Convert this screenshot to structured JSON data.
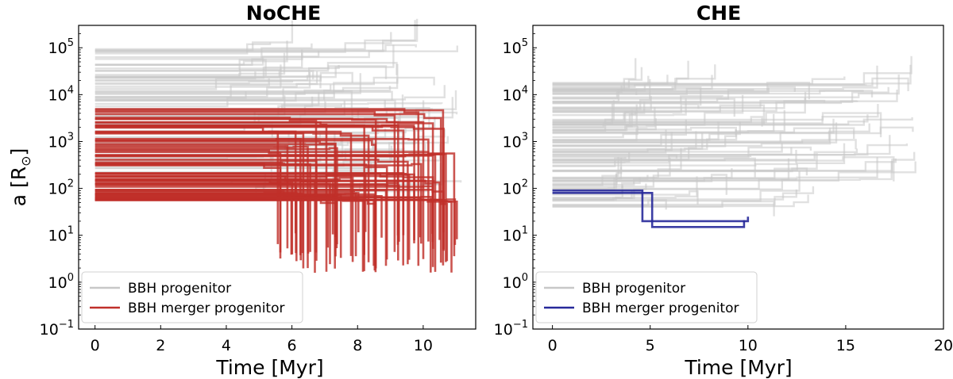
{
  "chart_data": [
    {
      "type": "line",
      "title": "NoCHE",
      "xlabel": "Time [Myr]",
      "ylabel": "a [R",
      "ylabel_symbol": "⊙",
      "x_ticks": [
        "0",
        "2",
        "4",
        "6",
        "8",
        "10"
      ],
      "y_ticks": [
        {
          "base": "10",
          "exp": "−1"
        },
        {
          "base": "10",
          "exp": "0"
        },
        {
          "base": "10",
          "exp": "1"
        },
        {
          "base": "10",
          "exp": "2"
        },
        {
          "base": "10",
          "exp": "3"
        },
        {
          "base": "10",
          "exp": "4"
        },
        {
          "base": "10",
          "exp": "5"
        }
      ],
      "xlim": [
        -0.5,
        11.6
      ],
      "ylim": [
        0.1,
        300000
      ],
      "yscale": "log",
      "grid": false,
      "legend_position": "lower-left",
      "legend": [
        "BBH progenitor",
        "BBH merger progenitor"
      ],
      "colors": {
        "progenitor": "#c8c8c8",
        "merger": "#c0302a"
      },
      "series": [
        {
          "name": "BBH progenitor",
          "role": "progenitor",
          "count": 90,
          "log_a_range": [
            1.8,
            5.0
          ],
          "t_end_range": [
            4.5,
            11.2
          ]
        },
        {
          "name": "BBH merger progenitor",
          "role": "merger",
          "count": 80,
          "log_a_range": [
            1.75,
            3.7
          ],
          "t_end_range": [
            5.5,
            11.2
          ],
          "final_log_a_range": [
            0.2,
            1.1
          ]
        }
      ]
    },
    {
      "type": "line",
      "title": "CHE",
      "xlabel": "Time [Myr]",
      "ylabel": "",
      "x_ticks": [
        "0",
        "5",
        "10",
        "15",
        "20"
      ],
      "y_ticks": [
        {
          "base": "10",
          "exp": "−1"
        },
        {
          "base": "10",
          "exp": "0"
        },
        {
          "base": "10",
          "exp": "1"
        },
        {
          "base": "10",
          "exp": "2"
        },
        {
          "base": "10",
          "exp": "3"
        },
        {
          "base": "10",
          "exp": "4"
        },
        {
          "base": "10",
          "exp": "5"
        }
      ],
      "xlim": [
        -1,
        20
      ],
      "ylim": [
        0.1,
        300000
      ],
      "yscale": "log",
      "grid": false,
      "legend_position": "lower-left",
      "legend": [
        "BBH progenitor",
        "BBH merger progenitor"
      ],
      "colors": {
        "progenitor": "#c8c8c8",
        "merger": "#27299a"
      },
      "series": [
        {
          "name": "BBH progenitor",
          "role": "progenitor",
          "count": 110,
          "log_a_range": [
            1.6,
            4.3
          ],
          "t_end_range": [
            3.0,
            19.0
          ]
        },
        {
          "name": "BBH merger progenitor",
          "role": "merger",
          "tracks": [
            {
              "t": [
                0,
                4.3,
                4.6,
                10.0
              ],
              "a": [
                90,
                90,
                20,
                25
              ]
            },
            {
              "t": [
                0,
                4.8,
                5.1,
                9.8
              ],
              "a": [
                80,
                80,
                15,
                21
              ]
            }
          ]
        }
      ]
    }
  ]
}
